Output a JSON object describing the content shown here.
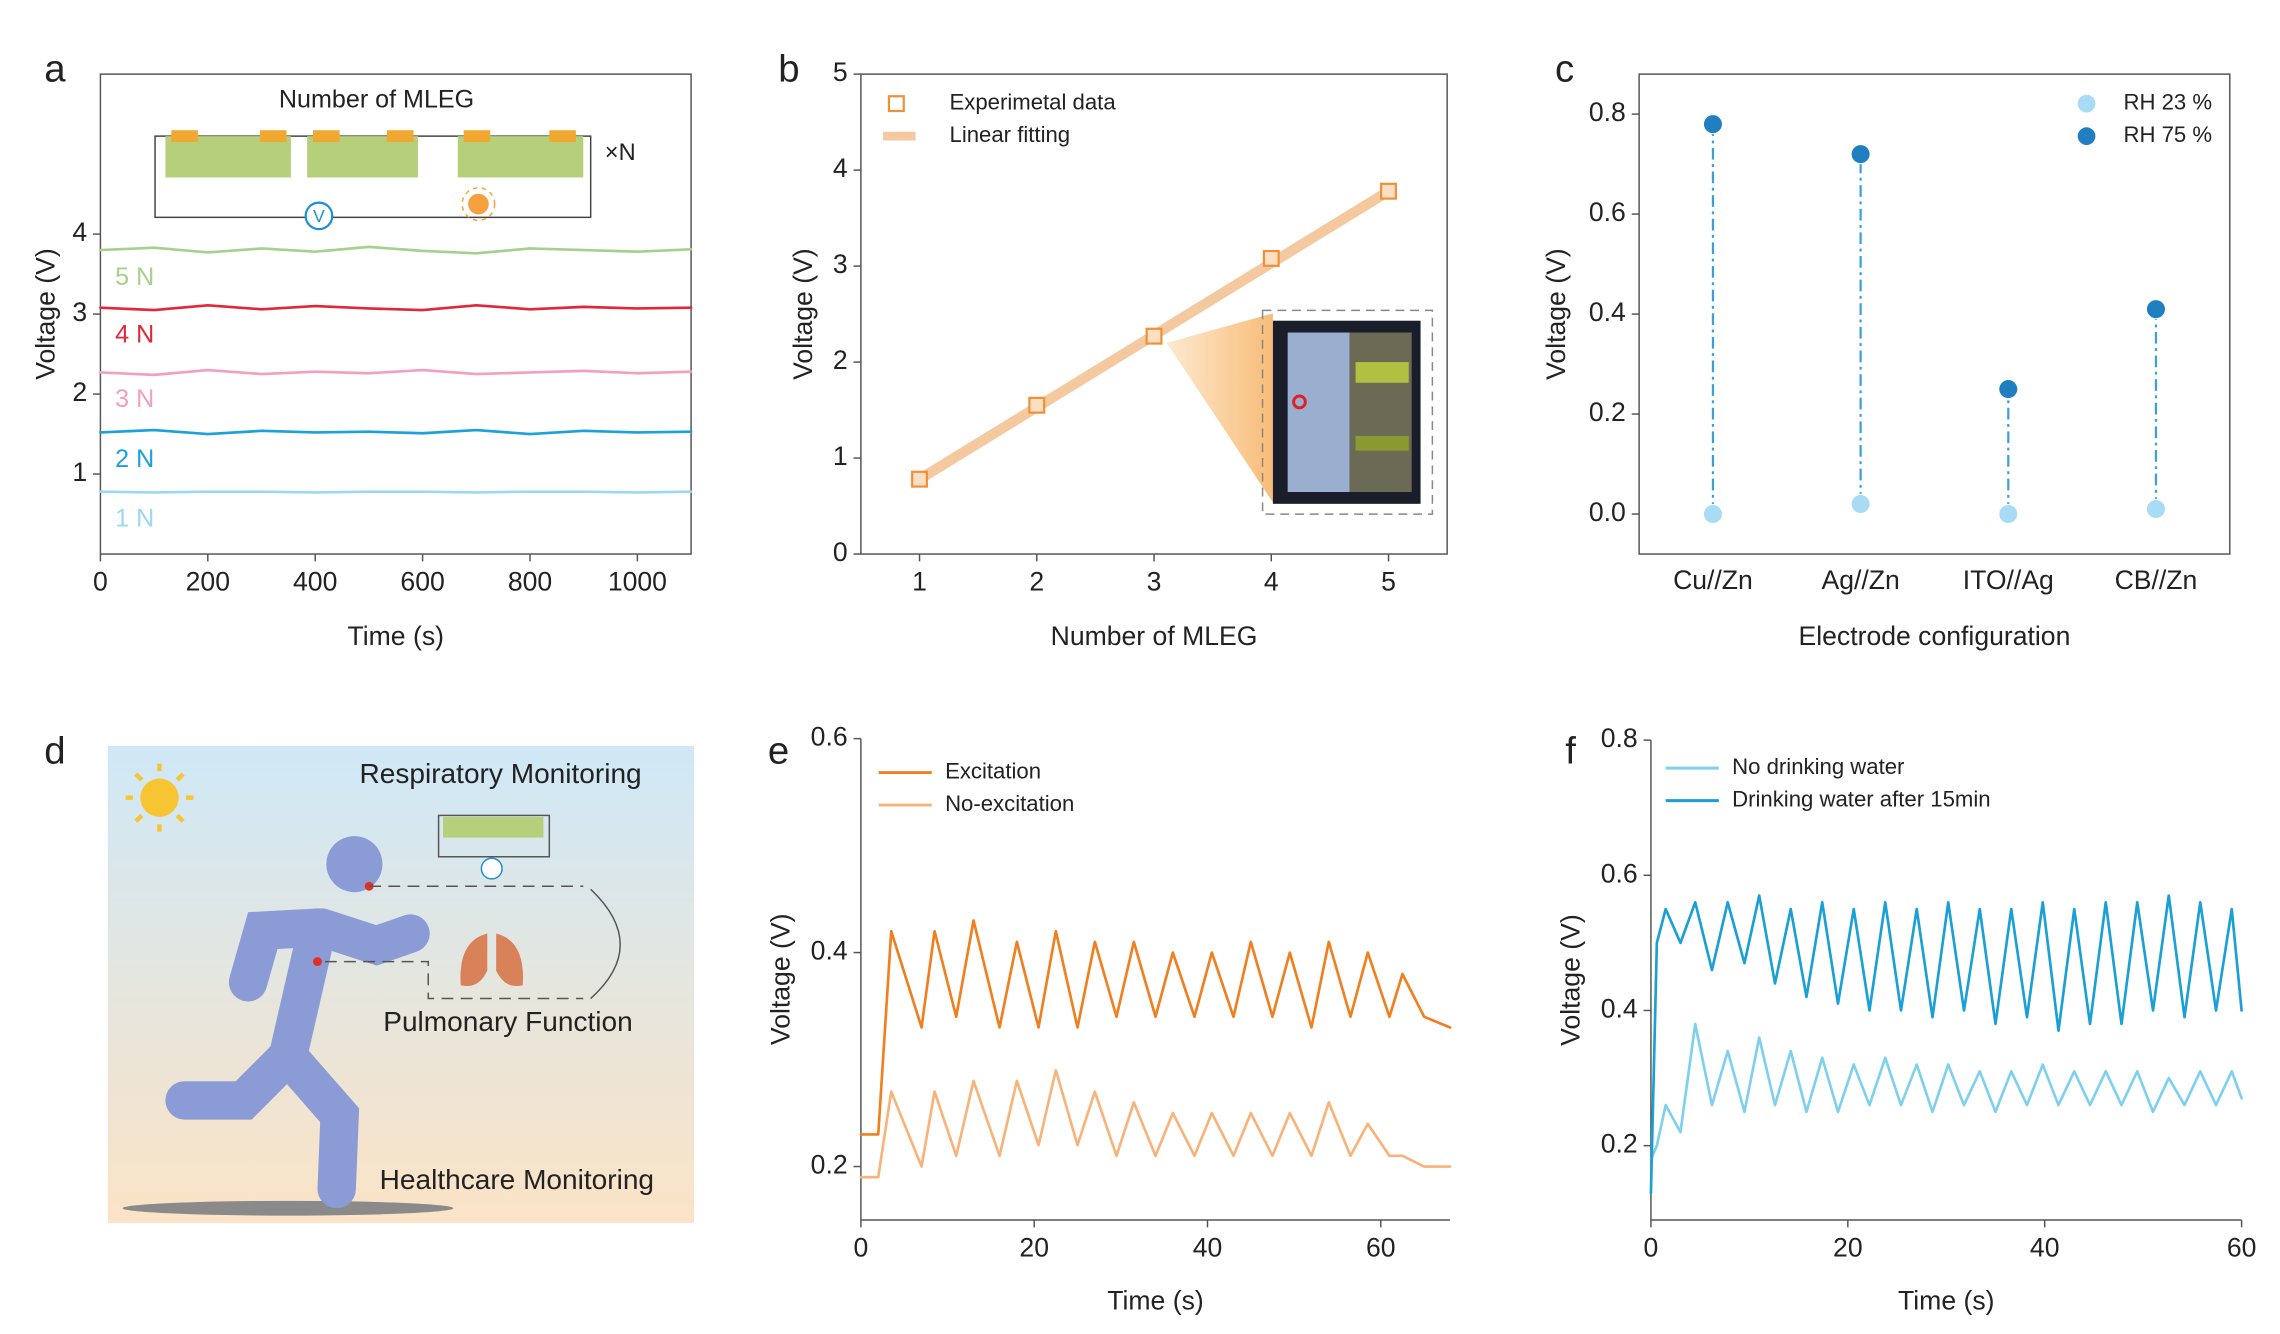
{
  "chart_data": [
    {
      "type": "line",
      "panel_label": "a",
      "x_label": "Time (s)",
      "y_label": "Voltage (V)",
      "annotations": [
        "Number of MLEG",
        "×N",
        "V"
      ],
      "x": [
        0,
        100,
        200,
        300,
        400,
        500,
        600,
        700,
        800,
        900,
        1000,
        1100
      ],
      "xlim": [
        0,
        1100
      ],
      "xticks": [
        0,
        200,
        400,
        600,
        800,
        1000
      ],
      "ylim": [
        0,
        6
      ],
      "yticks": [
        1,
        2,
        3,
        4
      ],
      "inline_labels": true,
      "series": [
        {
          "name": "1 N",
          "color": "#9ad9f0",
          "values": [
            0.78,
            0.77,
            0.78,
            0.78,
            0.77,
            0.78,
            0.78,
            0.77,
            0.78,
            0.78,
            0.77,
            0.78
          ]
        },
        {
          "name": "2 N",
          "color": "#1ba1dd",
          "values": [
            1.52,
            1.55,
            1.5,
            1.54,
            1.52,
            1.53,
            1.51,
            1.55,
            1.5,
            1.54,
            1.52,
            1.53
          ]
        },
        {
          "name": "3 N",
          "color": "#f0a0c0",
          "values": [
            2.27,
            2.24,
            2.3,
            2.25,
            2.28,
            2.26,
            2.3,
            2.25,
            2.27,
            2.29,
            2.26,
            2.28
          ]
        },
        {
          "name": "4 N",
          "color": "#e0283c",
          "values": [
            3.08,
            3.05,
            3.11,
            3.06,
            3.1,
            3.07,
            3.05,
            3.11,
            3.06,
            3.09,
            3.07,
            3.08
          ]
        },
        {
          "name": "5 N",
          "color": "#a8d08d",
          "values": [
            3.8,
            3.83,
            3.77,
            3.82,
            3.78,
            3.84,
            3.79,
            3.76,
            3.82,
            3.8,
            3.78,
            3.81
          ]
        }
      ]
    },
    {
      "type": "line",
      "panel_label": "b",
      "x_label": "Number of MLEG",
      "y_label": "Voltage (V)",
      "x": [
        1,
        2,
        3,
        4,
        5
      ],
      "xlim": [
        0.5,
        5.5
      ],
      "xticks": [
        1,
        2,
        3,
        4,
        5
      ],
      "ylim": [
        0,
        5
      ],
      "yticks": [
        0,
        1,
        2,
        3,
        4,
        5
      ],
      "legend": "upper left",
      "series": [
        {
          "name": "Experimetal data",
          "color": "#f0913a",
          "mode": "markers",
          "values": [
            0.78,
            1.55,
            2.27,
            3.08,
            3.78
          ]
        },
        {
          "name": "Linear fitting",
          "color": "#f5c9a0",
          "mode": "line",
          "x": [
            1,
            5
          ],
          "values": [
            0.78,
            3.78
          ]
        }
      ]
    },
    {
      "type": "dot",
      "panel_label": "c",
      "x_label": "Electrode configuration",
      "y_label": "Voltage (V)",
      "categories": [
        "Cu//Zn",
        "Ag//Zn",
        "ITO//Ag",
        "CB//Zn"
      ],
      "ylim": [
        -0.08,
        0.88
      ],
      "yticks": [
        {
          "value": 0,
          "label": "0.0"
        },
        0.2,
        0.4,
        0.6,
        0.8
      ],
      "legend": "upper right",
      "connector_color": "#3aa0dc",
      "series": [
        {
          "name": "RH 23 %",
          "color": "#a8dcf5",
          "values": [
            0,
            0.02,
            0,
            0.01
          ]
        },
        {
          "name": "RH 75 %",
          "color": "#1f7fc0",
          "values": [
            0.78,
            0.72,
            0.25,
            0.41
          ]
        }
      ]
    },
    {
      "type": "line",
      "panel_label": "e",
      "x_label": "Time (s)",
      "y_label": "Voltage (V)",
      "x": [
        0,
        2,
        3.5,
        7,
        8.5,
        11,
        13,
        16,
        18,
        20.5,
        22.5,
        25,
        27,
        29.5,
        31.5,
        34,
        36,
        38.5,
        40.5,
        43,
        45,
        47.5,
        49.5,
        52,
        54,
        56.5,
        58.5,
        61,
        62.5,
        65,
        68
      ],
      "xlim": [
        0,
        68
      ],
      "xticks": [
        0,
        20,
        40,
        60
      ],
      "ylim": [
        0.15,
        0.6
      ],
      "yticks": [
        0.2,
        0.4,
        0.6
      ],
      "legend": "upper left",
      "series": [
        {
          "name": "Excitation",
          "color": "#f07f1f",
          "values": [
            0.23,
            0.23,
            0.42,
            0.33,
            0.42,
            0.34,
            0.43,
            0.33,
            0.41,
            0.33,
            0.42,
            0.33,
            0.41,
            0.34,
            0.41,
            0.34,
            0.4,
            0.34,
            0.4,
            0.34,
            0.41,
            0.34,
            0.4,
            0.33,
            0.41,
            0.34,
            0.4,
            0.34,
            0.38,
            0.34,
            0.33
          ]
        },
        {
          "name": "No-excitation",
          "color": "#f8b37a",
          "values": [
            0.19,
            0.19,
            0.27,
            0.2,
            0.27,
            0.21,
            0.28,
            0.21,
            0.28,
            0.22,
            0.29,
            0.22,
            0.27,
            0.21,
            0.26,
            0.21,
            0.25,
            0.21,
            0.25,
            0.21,
            0.25,
            0.21,
            0.25,
            0.21,
            0.26,
            0.21,
            0.24,
            0.21,
            0.21,
            0.2,
            0.2
          ]
        }
      ]
    },
    {
      "type": "line",
      "panel_label": "f",
      "x_label": "Time (s)",
      "y_label": "Voltage (V)",
      "x": [
        0,
        0.6,
        1.5,
        3,
        4.5,
        6.2,
        7.8,
        9.5,
        11,
        12.6,
        14.2,
        15.8,
        17.4,
        19,
        20.6,
        22.2,
        23.8,
        25.4,
        27,
        28.6,
        30.2,
        31.8,
        33.4,
        35,
        36.6,
        38.2,
        39.8,
        41.4,
        43,
        44.6,
        46.2,
        47.8,
        49.4,
        51,
        52.6,
        54.2,
        55.8,
        57.4,
        59,
        60
      ],
      "xlim": [
        0,
        60
      ],
      "xticks": [
        0,
        20,
        40,
        60
      ],
      "ylim": [
        0.09,
        0.8
      ],
      "yticks": [
        0.2,
        0.4,
        0.6,
        0.8
      ],
      "legend": "upper left",
      "series": [
        {
          "name": "No drinking water",
          "color": "#7fd0ee",
          "values": [
            0.18,
            0.2,
            0.26,
            0.22,
            0.38,
            0.26,
            0.34,
            0.25,
            0.36,
            0.26,
            0.34,
            0.25,
            0.33,
            0.25,
            0.32,
            0.26,
            0.33,
            0.26,
            0.32,
            0.25,
            0.32,
            0.26,
            0.31,
            0.25,
            0.31,
            0.26,
            0.32,
            0.26,
            0.31,
            0.26,
            0.31,
            0.26,
            0.31,
            0.25,
            0.3,
            0.26,
            0.31,
            0.26,
            0.31,
            0.27
          ]
        },
        {
          "name": "Drinking water after 15min",
          "color": "#1a9fd6",
          "values": [
            0.13,
            0.5,
            0.55,
            0.5,
            0.56,
            0.46,
            0.56,
            0.47,
            0.57,
            0.44,
            0.55,
            0.42,
            0.56,
            0.41,
            0.55,
            0.4,
            0.56,
            0.4,
            0.55,
            0.39,
            0.56,
            0.4,
            0.55,
            0.38,
            0.55,
            0.39,
            0.56,
            0.37,
            0.55,
            0.38,
            0.56,
            0.38,
            0.56,
            0.4,
            0.57,
            0.39,
            0.56,
            0.4,
            0.55,
            0.4
          ]
        }
      ]
    }
  ],
  "panel_d": {
    "panel_label": "d",
    "texts": [
      "Respiratory Monitoring",
      "Pulmonary Function",
      "Healthcare Monitoring"
    ]
  }
}
